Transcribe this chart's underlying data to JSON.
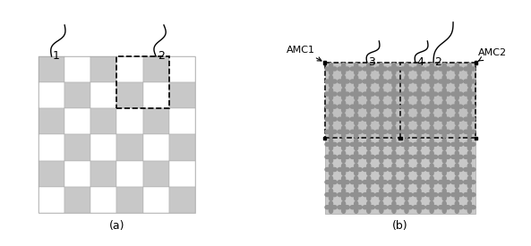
{
  "fig_width": 5.93,
  "fig_height": 2.75,
  "dpi": 100,
  "bg_color": "#ffffff",
  "gray_checker": "#c8c8c8",
  "checker_n": 6,
  "label_a": "(a)",
  "label_b": "(b)",
  "ann1": "1",
  "ann2": "2",
  "ann3": "3",
  "ann4": "4",
  "amc1_label": "AMC1",
  "amc2_label": "AMC2",
  "amc_bg_top": "#c8c8c8",
  "amc_bg_bot": "#cccccc",
  "pattern_color": "#888888"
}
